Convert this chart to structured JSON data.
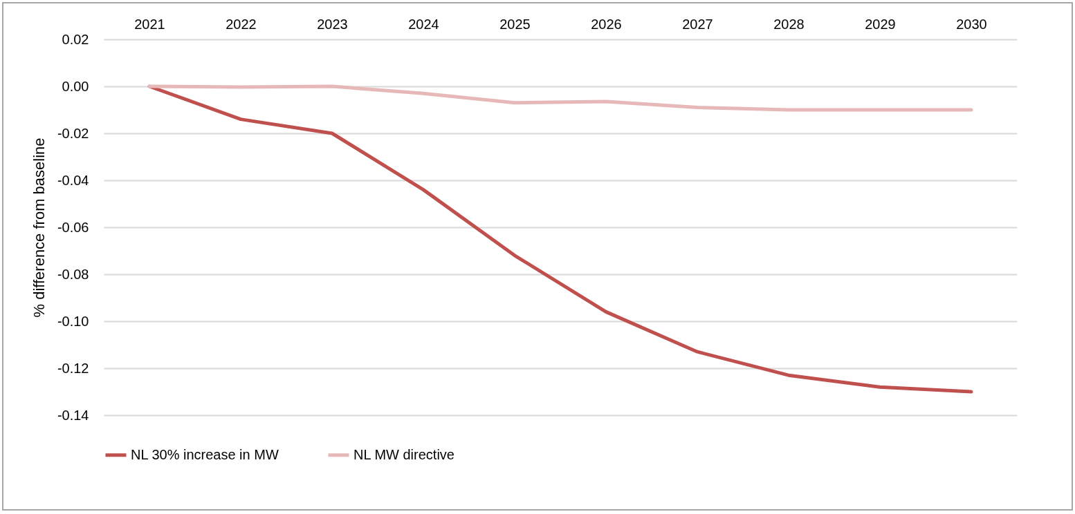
{
  "chart_data": {
    "type": "line",
    "ylabel": "% difference from baseline",
    "categories": [
      "2021",
      "2022",
      "2023",
      "2024",
      "2025",
      "2026",
      "2027",
      "2028",
      "2029",
      "2030"
    ],
    "series": [
      {
        "name": "NL 30% increase in MW",
        "color": "#c0504d",
        "values": [
          0,
          -0.014,
          -0.02,
          -0.044,
          -0.072,
          -0.096,
          -0.113,
          -0.123,
          -0.128,
          -0.13
        ]
      },
      {
        "name": "NL MW directive",
        "color": "#e6b9b8",
        "values": [
          0,
          -0.0003,
          0,
          -0.003,
          -0.007,
          -0.0065,
          -0.009,
          -0.01,
          -0.01,
          -0.01
        ]
      }
    ],
    "ylim": [
      -0.14,
      0.02
    ],
    "yticks": [
      {
        "value": -0.14,
        "label": "-0.14"
      },
      {
        "value": -0.12,
        "label": "-0.12"
      },
      {
        "value": -0.1,
        "label": "-0.10"
      },
      {
        "value": -0.08,
        "label": "-0.08"
      },
      {
        "value": -0.06,
        "label": "-0.06"
      },
      {
        "value": -0.04,
        "label": "-0.04"
      },
      {
        "value": -0.02,
        "label": "-0.02"
      },
      {
        "value": 0,
        "label": "0.00"
      },
      {
        "value": 0.02,
        "label": "0.02"
      }
    ],
    "grid": "y",
    "legend": "bottom",
    "line_style": "solid",
    "marker": "none"
  }
}
